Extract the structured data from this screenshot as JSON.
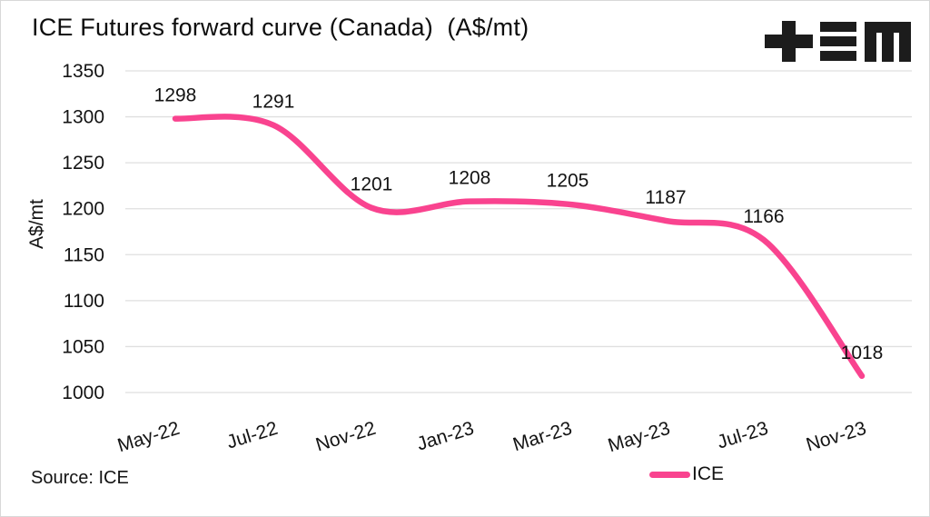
{
  "page": {
    "title": "ICE Futures forward curve (Canada)  (A$/mt)",
    "source": "Source: ICE"
  },
  "logo": {
    "name": "tem-logo",
    "color": "#1C1C1C"
  },
  "legend": {
    "position": "bottom-right",
    "items": [
      {
        "label": "ICE",
        "color": "#F9438F"
      }
    ]
  },
  "colors": {
    "line": "#F9438F",
    "grid": "#DFDFDF",
    "text": "#131313",
    "border": "#D8D8D8",
    "background": "#FFFFFF"
  },
  "chart_data": {
    "type": "line",
    "title": "ICE Futures forward curve (Canada)  (A$/mt)",
    "categories": [
      "May-22",
      "Jul-22",
      "Nov-22",
      "Jan-23",
      "Mar-23",
      "May-23",
      "Jul-23",
      "Nov-23"
    ],
    "series": [
      {
        "name": "ICE",
        "color": "#F9438F",
        "values": [
          1298,
          1291,
          1201,
          1208,
          1205,
          1187,
          1166,
          1018
        ],
        "smooth": true,
        "data_labels": true
      }
    ],
    "xlabel": "",
    "ylabel": "A$/mt",
    "ylim": [
      1000,
      1350
    ],
    "yticks": [
      1000,
      1050,
      1100,
      1150,
      1200,
      1250,
      1300,
      1350
    ],
    "grid": "horizontal",
    "x_tick_rotation": -17,
    "legend_position": "bottom-right",
    "source": "Source: ICE"
  }
}
